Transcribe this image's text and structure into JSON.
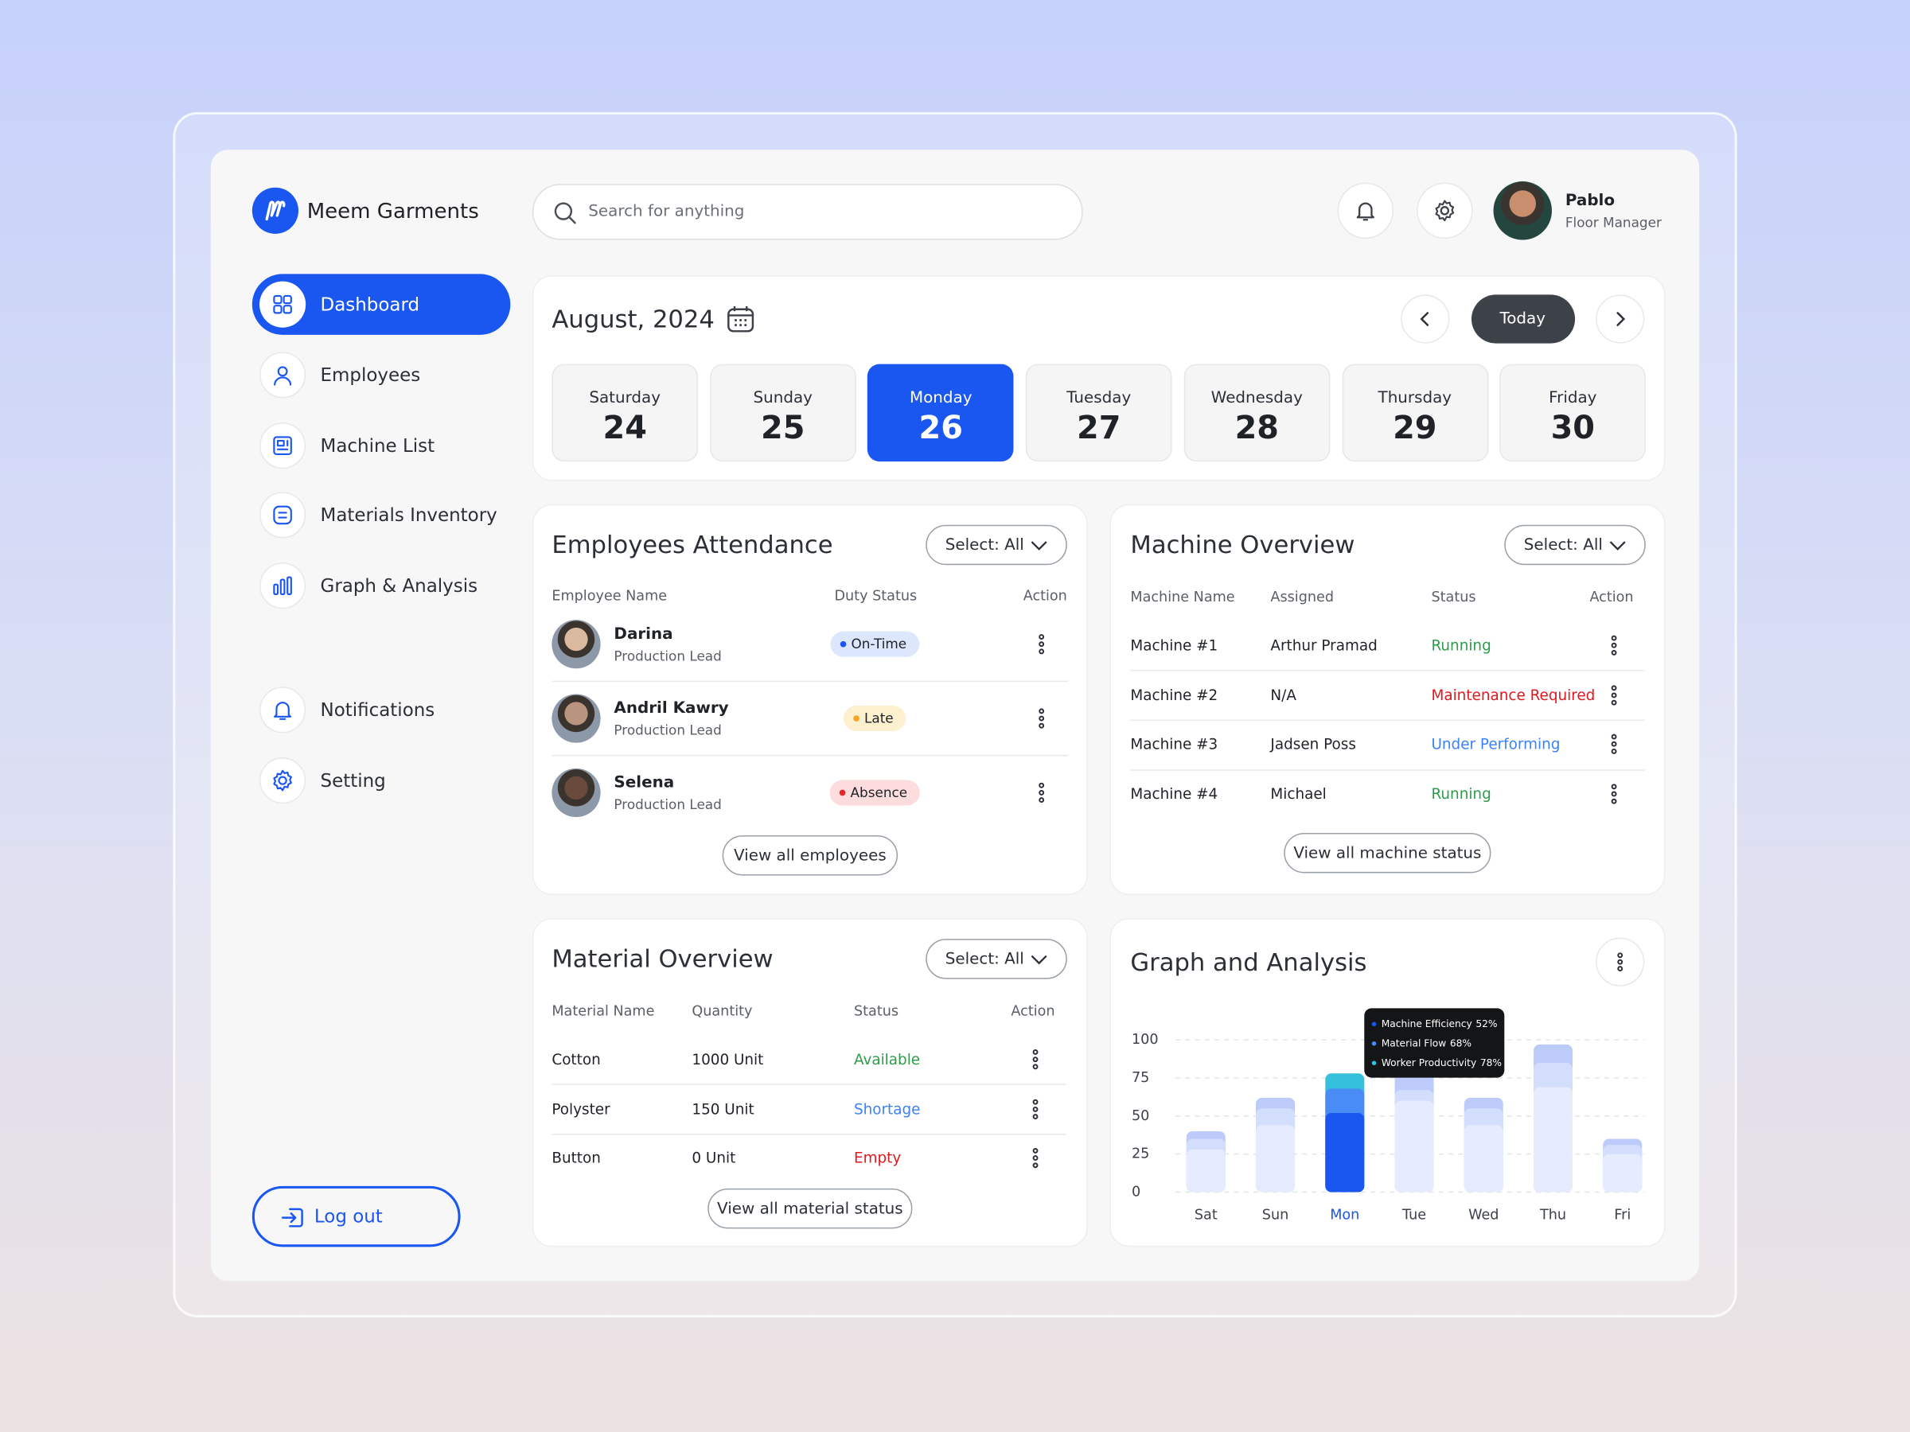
{
  "brand": "Meem Garments",
  "search_placeholder": "Search for anything",
  "user": {
    "name": "Pablo",
    "role": "Floor Manager"
  },
  "nav": {
    "active_index": 0,
    "items": [
      "Dashboard",
      "Employees",
      "Machine List",
      "Materials Inventory",
      "Graph & Analysis"
    ],
    "secondary": [
      "Notifications",
      "Setting"
    ],
    "logout": "Log out"
  },
  "calendar": {
    "title": "August, 2024",
    "today": "Today",
    "selected_index": 2,
    "days": [
      {
        "name": "Saturday",
        "date": 24
      },
      {
        "name": "Sunday",
        "date": 25
      },
      {
        "name": "Monday",
        "date": 26
      },
      {
        "name": "Tuesday",
        "date": 27
      },
      {
        "name": "Wednesday",
        "date": 28
      },
      {
        "name": "Thursday",
        "date": 29
      },
      {
        "name": "Friday",
        "date": 30
      }
    ]
  },
  "attendance": {
    "title": "Employees Attendance",
    "filter": "Select: All",
    "columns": [
      "Employee Name",
      "Duty Status",
      "Action"
    ],
    "rows": [
      {
        "name": "Darina",
        "role": "Production Lead",
        "status": "On-Time",
        "status_color": "#1a56f0",
        "status_bg": "#dce6fd"
      },
      {
        "name": "Andril Kawry",
        "role": "Production Lead",
        "status": "Late",
        "status_color": "#f5a524",
        "status_bg": "#fdf0cf"
      },
      {
        "name": "Selena",
        "role": "Production Lead",
        "status": "Absence",
        "status_color": "#e5252a",
        "status_bg": "#fcdcdc"
      }
    ],
    "button": "View all employees"
  },
  "machines": {
    "title": "Machine Overview",
    "filter": "Select: All",
    "columns": [
      "Machine Name",
      "Assigned",
      "Status",
      "Action"
    ],
    "rows": [
      {
        "cells": [
          "Machine #1",
          "Arthur Pramad",
          "Running"
        ],
        "status_color": "#2e9b4a"
      },
      {
        "cells": [
          "Machine #2",
          "N/A",
          "Maintenance Required"
        ],
        "status_color": "#e0191f"
      },
      {
        "cells": [
          "Machine #3",
          "Jadsen Poss",
          "Under Performing"
        ],
        "status_color": "#3b82f6"
      },
      {
        "cells": [
          "Machine #4",
          "Michael",
          "Running"
        ],
        "status_color": "#2e9b4a"
      }
    ],
    "button": "View all machine status"
  },
  "materials": {
    "title": "Material Overview",
    "filter": "Select: All",
    "columns": [
      "Material Name",
      "Quantity",
      "Status",
      "Action"
    ],
    "rows": [
      {
        "cells": [
          "Cotton",
          "1000 Unit",
          "Available"
        ],
        "status_color": "#2e9b4a"
      },
      {
        "cells": [
          "Polyster",
          "150 Unit",
          "Shortage"
        ],
        "status_color": "#3b82f6"
      },
      {
        "cells": [
          "Button",
          "0 Unit",
          "Empty"
        ],
        "status_color": "#e0191f"
      }
    ],
    "button": "View all material status"
  },
  "chart_data": {
    "type": "bar",
    "title": "Graph and Analysis",
    "categories": [
      "Sat",
      "Sun",
      "Mon",
      "Tue",
      "Wed",
      "Thu",
      "Fri"
    ],
    "selected_index": 2,
    "series": [
      {
        "name": "Worker Productivity",
        "color": "#35c0dc",
        "muted_color": "#bccbfa",
        "values": [
          40,
          62,
          78,
          79,
          62,
          97,
          35
        ],
        "value_labels": [
          null,
          null,
          "78%",
          null,
          null,
          null,
          null
        ]
      },
      {
        "name": "Material Flow",
        "color": "#4a8cf6",
        "muted_color": "#d3defc",
        "values": [
          35,
          55,
          68,
          67,
          55,
          85,
          31
        ],
        "value_labels": [
          null,
          null,
          "68%",
          null,
          null,
          null,
          null
        ]
      },
      {
        "name": "Machine Efficiency",
        "color": "#1a56f0",
        "muted_color": "#e6ecfd",
        "values": [
          28,
          44,
          52,
          60,
          44,
          69,
          25
        ],
        "value_labels": [
          null,
          null,
          "52%",
          null,
          null,
          null,
          null
        ]
      }
    ],
    "ylim": [
      0,
      100
    ],
    "yticks": [
      0,
      25,
      50,
      75,
      100
    ],
    "grid": true
  }
}
